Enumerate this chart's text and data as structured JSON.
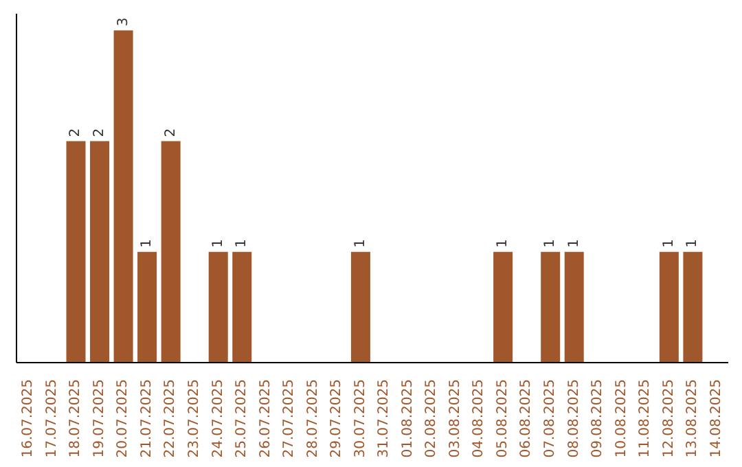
{
  "chart_data": {
    "type": "bar",
    "categories": [
      "16.07.2025",
      "17.07.2025",
      "18.07.2025",
      "19.07.2025",
      "20.07.2025",
      "21.07.2025",
      "22.07.2025",
      "23.07.2025",
      "24.07.2025",
      "25.07.2025",
      "26.07.2025",
      "27.07.2025",
      "28.07.2025",
      "29.07.2025",
      "30.07.2025",
      "31.07.2025",
      "01.08.2025",
      "02.08.2025",
      "03.08.2025",
      "04.08.2025",
      "05.08.2025",
      "06.08.2025",
      "07.08.2025",
      "08.08.2025",
      "09.08.2025",
      "10.08.2025",
      "11.08.2025",
      "12.08.2025",
      "13.08.2025",
      "14.08.2025"
    ],
    "values": [
      0,
      0,
      2,
      2,
      3,
      1,
      2,
      0,
      1,
      1,
      0,
      0,
      0,
      0,
      1,
      0,
      0,
      0,
      0,
      0,
      1,
      0,
      1,
      1,
      0,
      0,
      0,
      1,
      1,
      0
    ],
    "value_labels": [
      null,
      null,
      "2",
      "2",
      "3",
      "1",
      "2",
      null,
      "1",
      "1",
      null,
      null,
      null,
      null,
      "1",
      null,
      null,
      null,
      null,
      null,
      "1",
      null,
      "1",
      "1",
      null,
      null,
      null,
      "1",
      "1",
      null
    ],
    "color": "#a0572b",
    "grid": false,
    "tick_labels": "x"
  }
}
